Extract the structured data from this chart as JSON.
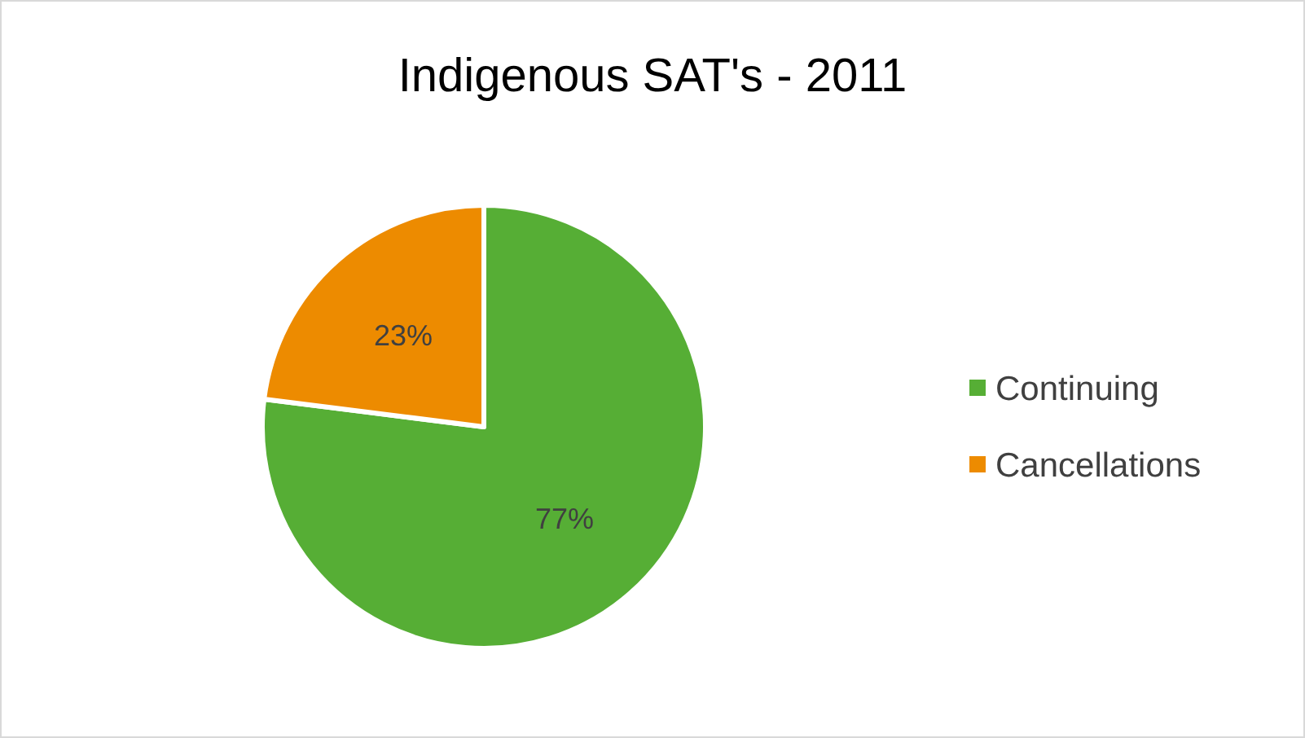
{
  "chart_data": {
    "type": "pie",
    "title": "Indigenous SAT's - 2011",
    "categories": [
      "Continuing",
      "Cancellations"
    ],
    "values": [
      77,
      23
    ],
    "colors": [
      "#56ae35",
      "#ed8b00"
    ],
    "value_labels": [
      "77%",
      "23%"
    ],
    "legend": "right"
  }
}
